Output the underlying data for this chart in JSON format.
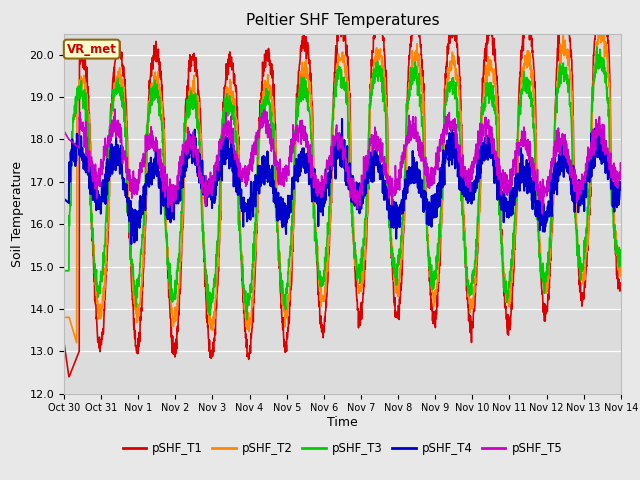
{
  "title": "Peltier SHF Temperatures",
  "ylabel": "Soil Temperature",
  "xlabel": "Time",
  "ylim": [
    12.0,
    20.5
  ],
  "figure_facecolor": "#e8e8e8",
  "axes_facecolor": "#dcdcdc",
  "annotation_text": "VR_met",
  "annotation_bg": "#ffffcc",
  "annotation_edge": "#8b6914",
  "annotation_text_color": "#cc0000",
  "series_order": [
    "pSHF_T1",
    "pSHF_T2",
    "pSHF_T3",
    "pSHF_T4",
    "pSHF_T5"
  ],
  "series": {
    "pSHF_T1": {
      "color": "#dd0000",
      "lw": 1.2
    },
    "pSHF_T2": {
      "color": "#ff8800",
      "lw": 1.2
    },
    "pSHF_T3": {
      "color": "#00cc00",
      "lw": 1.2
    },
    "pSHF_T4": {
      "color": "#0000cc",
      "lw": 1.5
    },
    "pSHF_T5": {
      "color": "#cc00cc",
      "lw": 1.2
    }
  },
  "x_tick_labels": [
    "Oct 30",
    "Oct 31",
    "Nov 1",
    "Nov 2",
    "Nov 3",
    "Nov 4",
    "Nov 5",
    "Nov 6",
    "Nov 7",
    "Nov 8",
    "Nov 9",
    "Nov 10",
    "Nov 11",
    "Nov 12",
    "Nov 13",
    "Nov 14"
  ],
  "y_ticks": [
    12.0,
    13.0,
    14.0,
    15.0,
    16.0,
    17.0,
    18.0,
    19.0,
    20.0
  ],
  "legend_labels": [
    "pSHF_T1",
    "pSHF_T2",
    "pSHF_T3",
    "pSHF_T4",
    "pSHF_T5"
  ],
  "legend_colors": [
    "#dd0000",
    "#ff8800",
    "#00cc00",
    "#0000cc",
    "#cc00cc"
  ]
}
